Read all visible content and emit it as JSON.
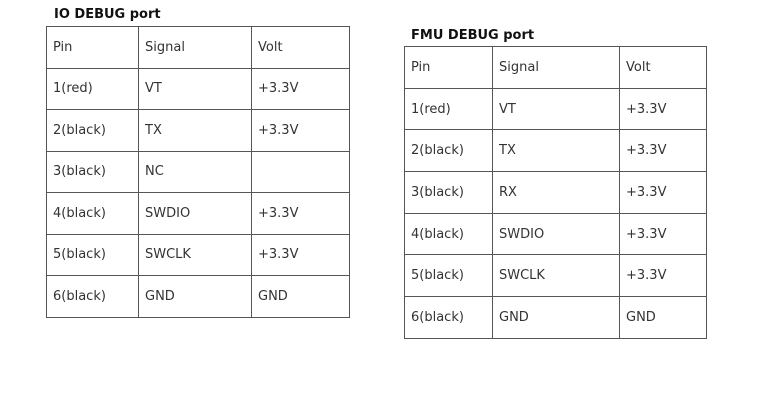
{
  "io_debug": {
    "title": "IO DEBUG port",
    "header": {
      "pin": "Pin",
      "signal": "Signal",
      "volt": "Volt"
    },
    "rows": [
      {
        "pin": "1(red)",
        "signal": "VT",
        "volt": "+3.3V"
      },
      {
        "pin": "2(black)",
        "signal": "TX",
        "volt": "+3.3V"
      },
      {
        "pin": "3(black)",
        "signal": "NC",
        "volt": ""
      },
      {
        "pin": "4(black)",
        "signal": "SWDIO",
        "volt": "+3.3V"
      },
      {
        "pin": "5(black)",
        "signal": "SWCLK",
        "volt": "+3.3V"
      },
      {
        "pin": "6(black)",
        "signal": "GND",
        "volt": "GND"
      }
    ]
  },
  "fmu_debug": {
    "title": "FMU DEBUG port",
    "header": {
      "pin": "Pin",
      "signal": "Signal",
      "volt": "Volt"
    },
    "rows": [
      {
        "pin": "1(red)",
        "signal": "VT",
        "volt": "+3.3V"
      },
      {
        "pin": "2(black)",
        "signal": "TX",
        "volt": "+3.3V"
      },
      {
        "pin": "3(black)",
        "signal": "RX",
        "volt": "+3.3V"
      },
      {
        "pin": "4(black)",
        "signal": "SWDIO",
        "volt": "+3.3V"
      },
      {
        "pin": "5(black)",
        "signal": "SWCLK",
        "volt": "+3.3V"
      },
      {
        "pin": "6(black)",
        "signal": "GND",
        "volt": "GND"
      }
    ]
  }
}
